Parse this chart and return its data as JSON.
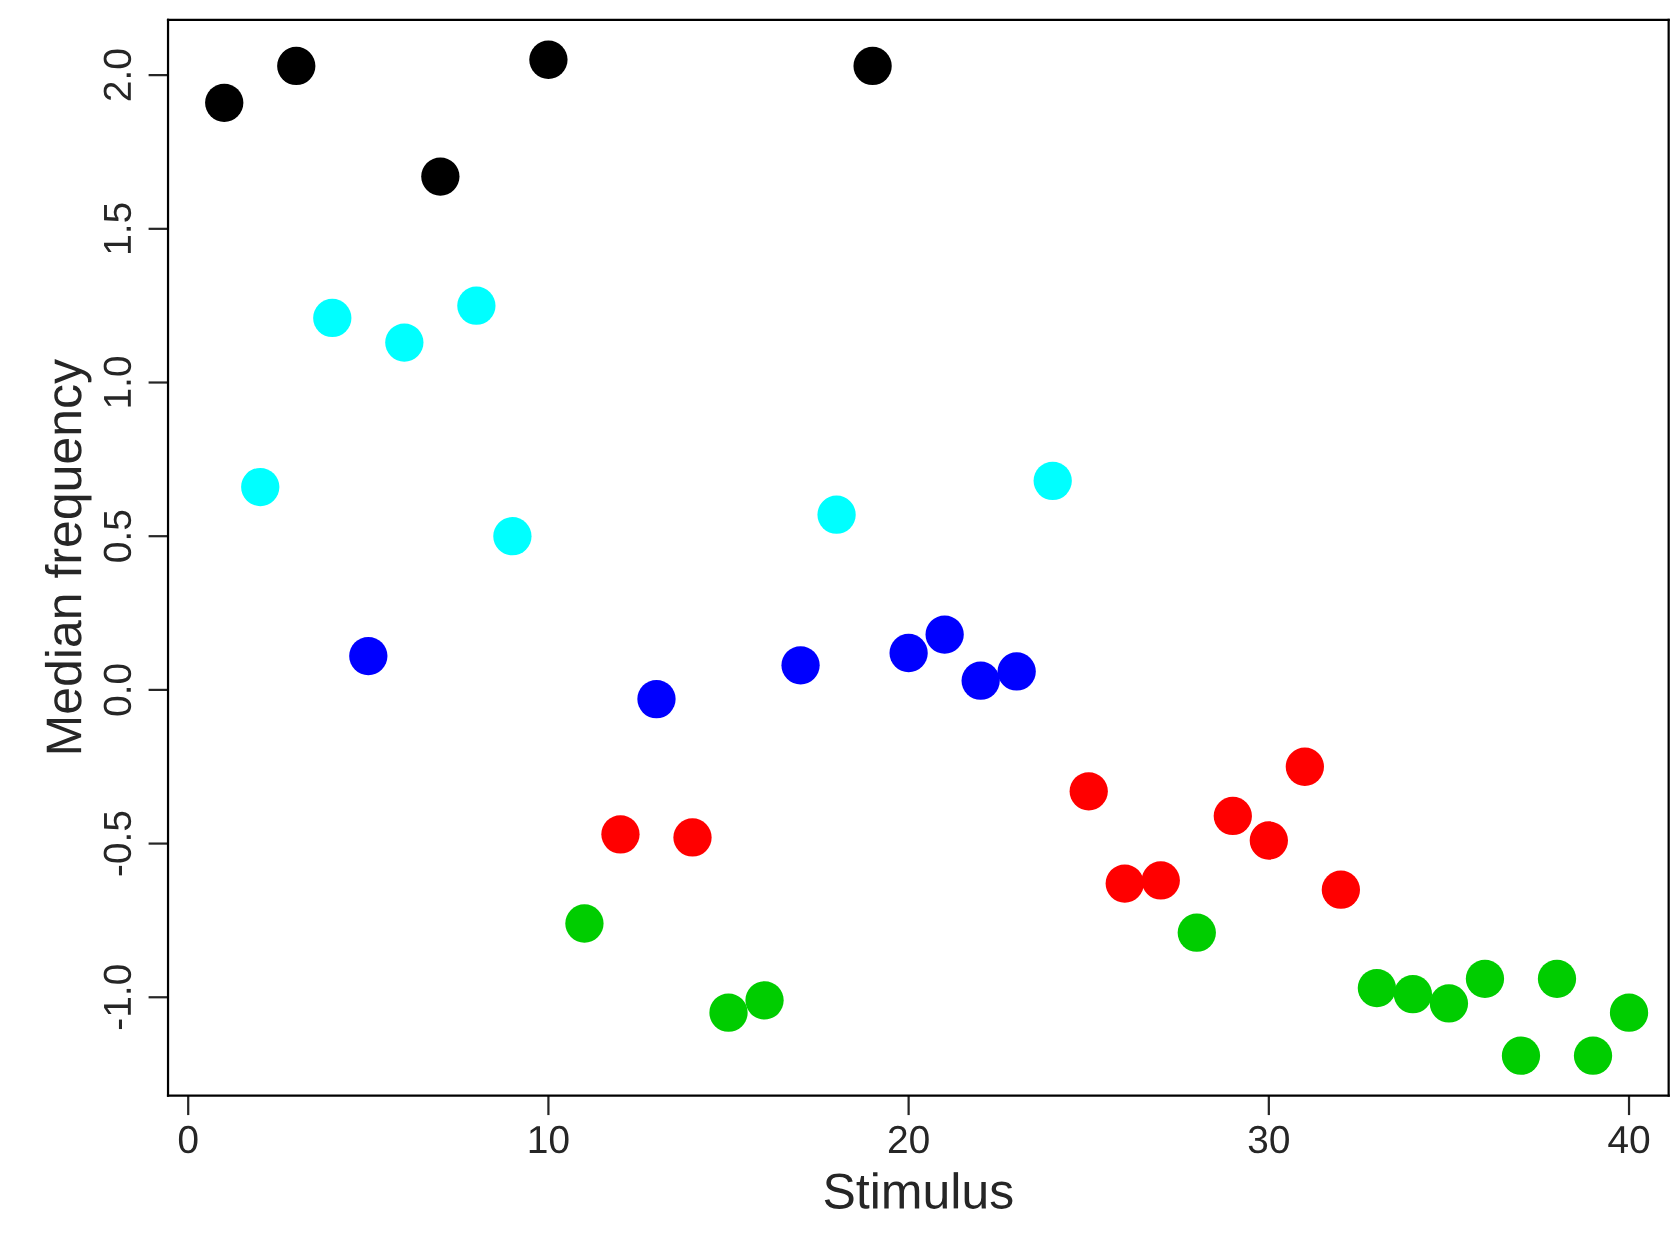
{
  "chart_data": {
    "type": "scatter",
    "xlabel": "Stimulus",
    "ylabel": "Median frequency",
    "xlim": [
      -0.56,
      41.1
    ],
    "ylim": [
      -1.32,
      2.18
    ],
    "xticks": [
      0,
      10,
      20,
      30,
      40
    ],
    "yticks": [
      {
        "value": -1,
        "label": "-1.0"
      },
      -0.5,
      {
        "value": 0,
        "label": "0.0"
      },
      0.5,
      {
        "value": 1,
        "label": "1.0"
      },
      1.5,
      {
        "value": 2,
        "label": "2.0"
      }
    ],
    "grid": false,
    "legend": false,
    "marker": "circle",
    "series": [
      {
        "color": "#000000",
        "x": [
          1,
          3,
          7,
          10,
          19
        ],
        "values": [
          1.91,
          2.03,
          1.67,
          2.05,
          2.03
        ]
      },
      {
        "color": "#00ffff",
        "x": [
          2,
          4,
          6,
          8,
          9,
          18,
          24
        ],
        "values": [
          0.66,
          1.21,
          1.13,
          1.25,
          0.5,
          0.57,
          0.68
        ]
      },
      {
        "color": "#0000ff",
        "x": [
          5,
          13,
          17,
          20,
          21,
          22,
          23
        ],
        "values": [
          0.11,
          -0.03,
          0.08,
          0.12,
          0.18,
          0.03,
          0.06
        ]
      },
      {
        "color": "#ff0000",
        "x": [
          12,
          14,
          25,
          26,
          27,
          29,
          30,
          31,
          32
        ],
        "values": [
          -0.47,
          -0.48,
          -0.33,
          -0.63,
          -0.62,
          -0.41,
          -0.49,
          -0.25,
          -0.65
        ]
      },
      {
        "color": "#00cd00",
        "x": [
          11,
          15,
          16,
          28,
          33,
          34,
          35,
          36,
          37,
          38,
          39,
          40
        ],
        "values": [
          -0.76,
          -1.05,
          -1.01,
          -0.79,
          -0.97,
          -0.99,
          -1.02,
          -0.94,
          -1.19,
          -0.94,
          -1.19,
          -1.05
        ]
      }
    ]
  }
}
